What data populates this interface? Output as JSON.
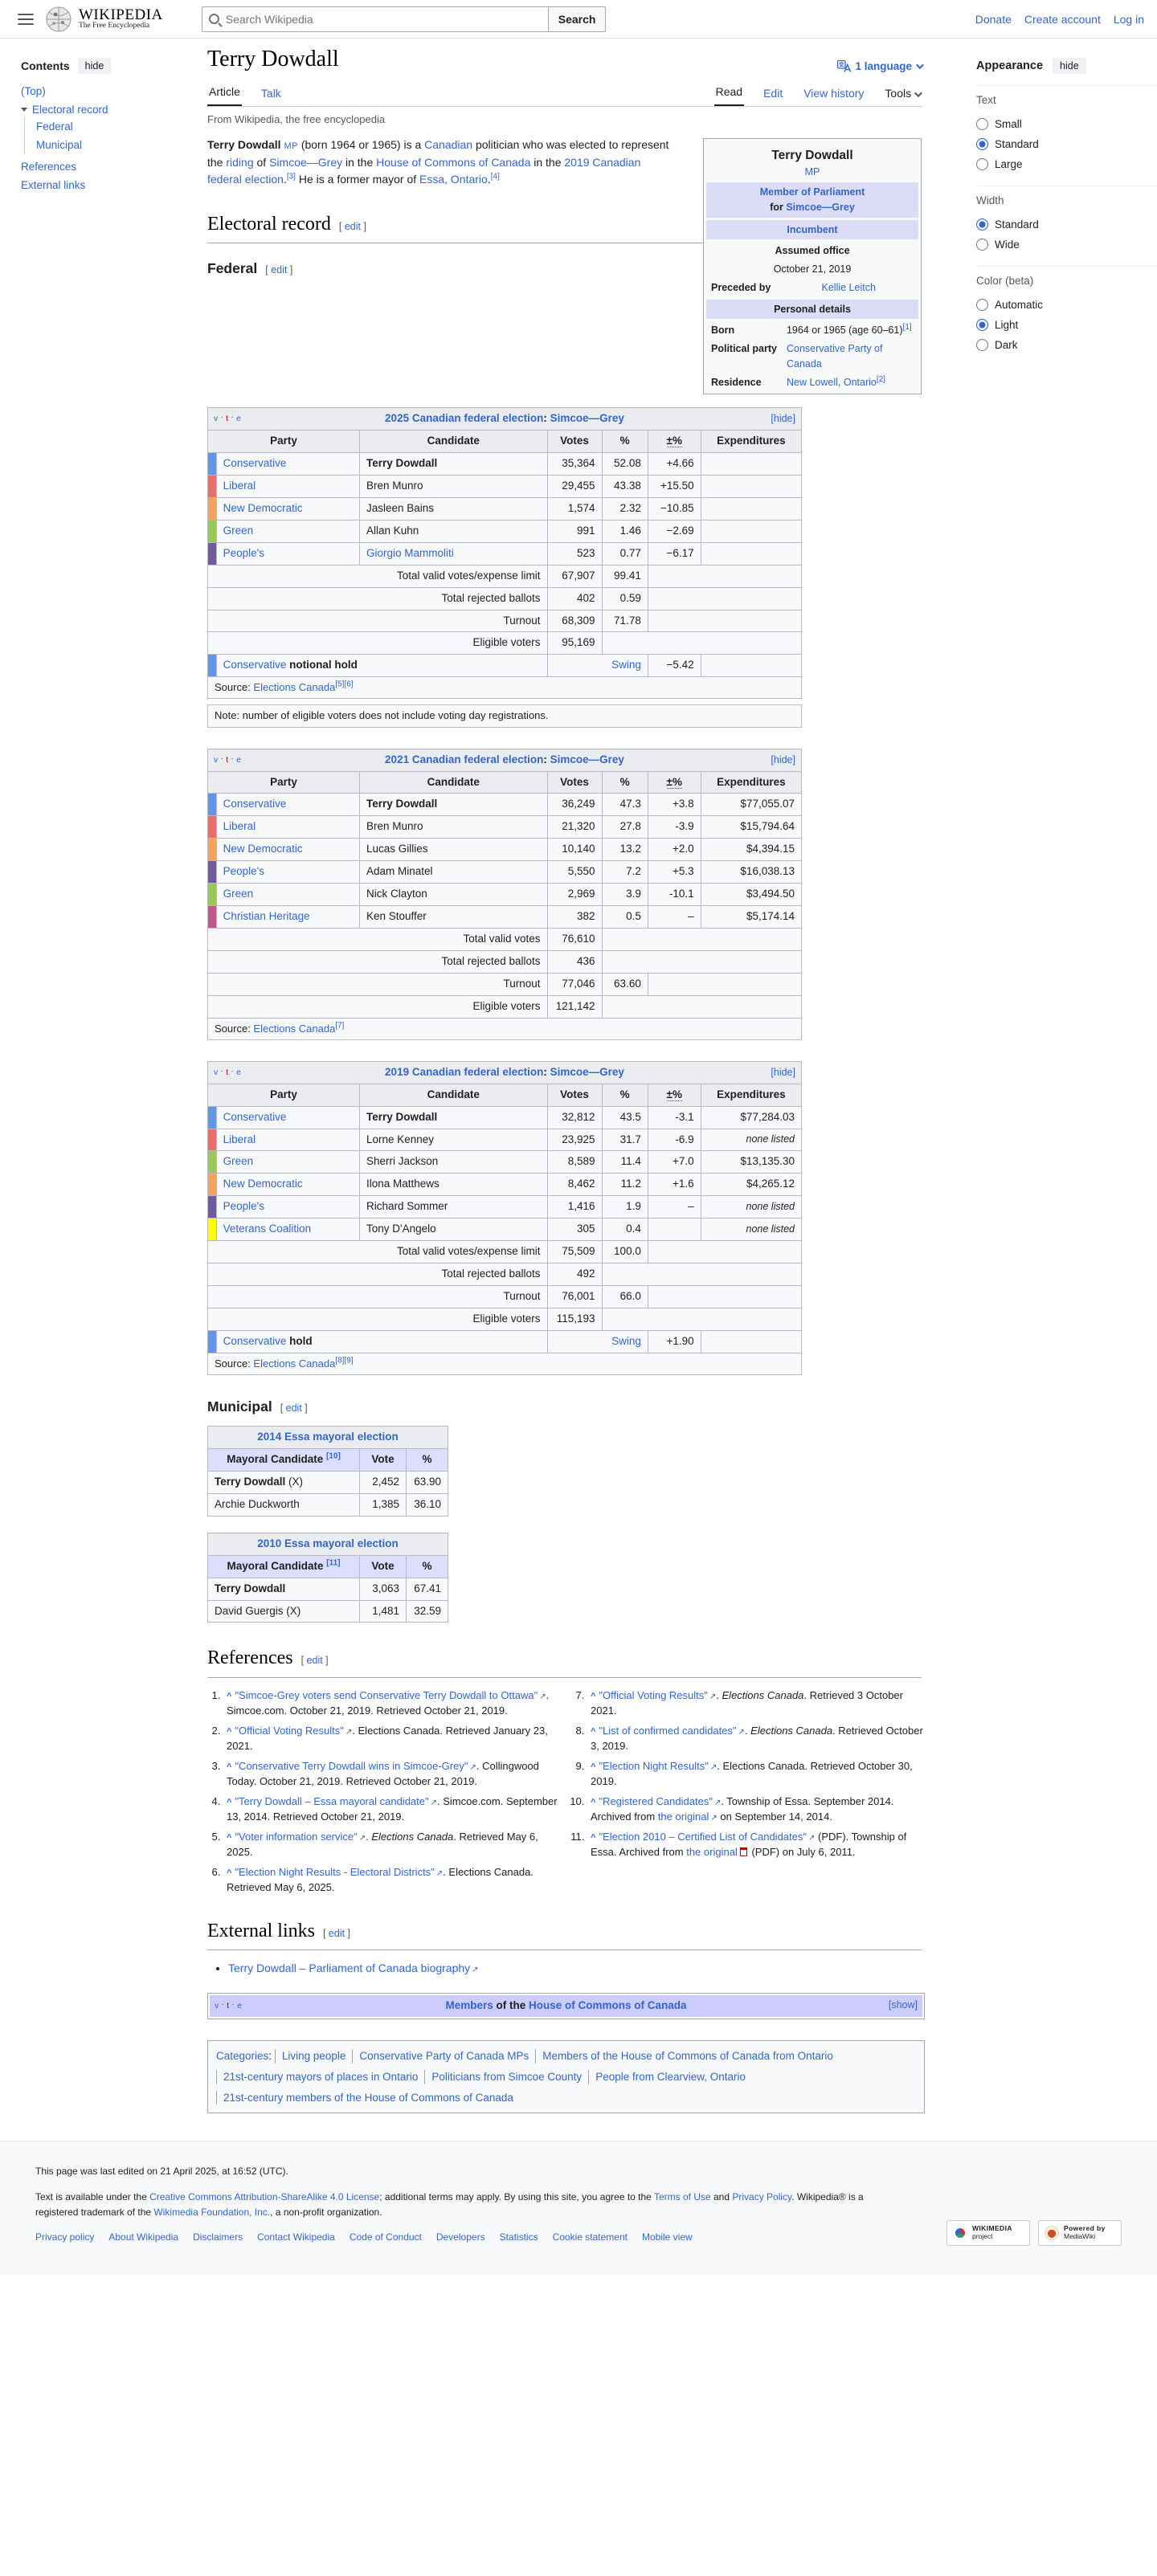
{
  "header": {
    "logo_main": "WIKIPEDIA",
    "logo_sub": "The Free Encyclopedia",
    "search": {
      "placeholder": "Search Wikipedia",
      "button": "Search"
    },
    "links": [
      "Donate",
      "Create account",
      "Log in"
    ]
  },
  "toc": {
    "title": "Contents",
    "hide": "hide",
    "items": [
      {
        "label": "(Top)"
      },
      {
        "label": "Electoral record"
      },
      {
        "label": "Federal"
      },
      {
        "label": "Municipal"
      },
      {
        "label": "References"
      },
      {
        "label": "External links"
      }
    ]
  },
  "title_row": {
    "title": "Terry Dowdall",
    "language": "1 language"
  },
  "tabs": {
    "left": [
      "Article",
      "Talk"
    ],
    "right": [
      "Read",
      "Edit",
      "View history",
      "Tools"
    ]
  },
  "tagline": "From Wikipedia, the free encyclopedia",
  "intro_segments": [
    {
      "t": "Terry Dowdall",
      "b": true
    },
    {
      "t": " "
    },
    {
      "t": "MP",
      "link": true,
      "small": true
    },
    {
      "t": " (born 1964 or 1965) is a "
    },
    {
      "t": "Canadian",
      "link": true
    },
    {
      "t": " politician who was elected to represent the "
    },
    {
      "t": "riding",
      "link": true
    },
    {
      "t": " of "
    },
    {
      "t": "Simcoe—Grey",
      "link": true
    },
    {
      "t": " in the "
    },
    {
      "t": "House of Commons of Canada",
      "link": true
    },
    {
      "t": " in the "
    },
    {
      "t": "2019 Canadian federal election",
      "link": true
    },
    {
      "t": "."
    },
    {
      "t": "[3]",
      "sup": true
    },
    {
      "t": " He is a former mayor of "
    },
    {
      "t": "Essa, Ontario",
      "link": true
    },
    {
      "t": "."
    },
    {
      "t": "[4]",
      "sup": true
    }
  ],
  "infobox": {
    "title": "Terry Dowdall",
    "subtitle": "MP",
    "office_link": "Member of Parliament",
    "office_for": "for",
    "office_riding": "Simcoe—Grey",
    "incumbent": "Incumbent",
    "assumed_office_label": "Assumed office",
    "assumed_office_value": "October 21, 2019",
    "preceded_label": "Preceded by",
    "preceded_value": "Kellie Leitch",
    "personal_details": "Personal details",
    "born_label": "Born",
    "born_value": "1964 or 1965 (age 60–61)",
    "born_ref": "[1]",
    "party_label": "Political party",
    "party_value": "Conservative Party of Canada",
    "residence_label": "Residence",
    "residence_value": "New Lowell, Ontario",
    "residence_ref": "[2]"
  },
  "sections": {
    "electoral_record": {
      "title": "Electoral record",
      "edit": "edit"
    },
    "federal": {
      "title": "Federal",
      "edit": "edit"
    },
    "municipal": {
      "title": "Municipal",
      "edit": "edit"
    },
    "references": {
      "title": "References",
      "edit": "edit"
    },
    "external_links": {
      "title": "External links",
      "edit": "edit"
    }
  },
  "vte": {
    "v": "v",
    "t": "t",
    "e": "e"
  },
  "toggles": {
    "hide": "[hide]",
    "show": "[show]"
  },
  "table_columns": [
    "Party",
    "Candidate",
    "Votes",
    "%",
    "±%",
    "Expenditures"
  ],
  "elections": [
    {
      "caption_parts": [
        {
          "t": "2025 Canadian federal election",
          "link": true
        },
        {
          "t": ": "
        },
        {
          "t": "Simcoe—Grey",
          "link": true
        }
      ],
      "rows": [
        {
          "color": "#6495ed",
          "party": "Conservative",
          "candidate": "Terry Dowdall",
          "cand_bold": true,
          "votes": "35,364",
          "pct": "52.08",
          "change": "+4.66",
          "exp": ""
        },
        {
          "color": "#ea6d6a",
          "party": "Liberal",
          "candidate": "Bren Munro",
          "votes": "29,455",
          "pct": "43.38",
          "change": "+15.50",
          "exp": ""
        },
        {
          "color": "#f4a460",
          "party": "New Democratic",
          "candidate": "Jasleen Bains",
          "votes": "1,574",
          "pct": "2.32",
          "change": "−10.85",
          "exp": ""
        },
        {
          "color": "#99c955",
          "party": "Green",
          "candidate": "Allan Kuhn",
          "votes": "991",
          "pct": "1.46",
          "change": "−2.69",
          "exp": ""
        },
        {
          "color": "#6e5c9e",
          "party": "People's",
          "candidate": "Giorgio Mammoliti",
          "cand_link": true,
          "votes": "523",
          "pct": "0.77",
          "change": "−6.17",
          "exp": ""
        }
      ],
      "totals": [
        {
          "label": "Total valid votes/expense limit",
          "votes": "67,907",
          "pct": "99.41"
        },
        {
          "label": "Total rejected ballots",
          "votes": "402",
          "pct": "0.59"
        },
        {
          "label": "Turnout",
          "votes": "68,309",
          "pct": "71.78"
        },
        {
          "label": "Eligible voters",
          "votes": "95,169",
          "pct": null
        }
      ],
      "result": {
        "color": "#6495ed",
        "party": "Conservative",
        "status": " notional hold",
        "swing_label": "Swing",
        "swing": "−5.42"
      },
      "source_parts": [
        {
          "t": "Source: "
        },
        {
          "t": "Elections Canada",
          "link": true
        },
        {
          "t": "[5][6]",
          "sup": true
        }
      ],
      "note": "Note: number of eligible voters does not include voting day registrations."
    },
    {
      "caption_parts": [
        {
          "t": "2021 Canadian federal election",
          "link": true
        },
        {
          "t": ": "
        },
        {
          "t": "Simcoe—Grey",
          "link": true
        }
      ],
      "rows": [
        {
          "color": "#6495ed",
          "party": "Conservative",
          "candidate": "Terry Dowdall",
          "cand_bold": true,
          "votes": "36,249",
          "pct": "47.3",
          "change": "+3.8",
          "exp": "$77,055.07"
        },
        {
          "color": "#ea6d6a",
          "party": "Liberal",
          "candidate": "Bren Munro",
          "votes": "21,320",
          "pct": "27.8",
          "change": "-3.9",
          "exp": "$15,794.64"
        },
        {
          "color": "#f4a460",
          "party": "New Democratic",
          "candidate": "Lucas Gillies",
          "votes": "10,140",
          "pct": "13.2",
          "change": "+2.0",
          "exp": "$4,394.15"
        },
        {
          "color": "#6e5c9e",
          "party": "People's",
          "candidate": "Adam Minatel",
          "votes": "5,550",
          "pct": "7.2",
          "change": "+5.3",
          "exp": "$16,038.13"
        },
        {
          "color": "#99c955",
          "party": "Green",
          "candidate": "Nick Clayton",
          "votes": "2,969",
          "pct": "3.9",
          "change": "-10.1",
          "exp": "$3,494.50"
        },
        {
          "color": "#c1588c",
          "party": "Christian Heritage",
          "candidate": "Ken Stouffer",
          "votes": "382",
          "pct": "0.5",
          "change": "–",
          "exp": "$5,174.14"
        }
      ],
      "totals": [
        {
          "label": "Total valid votes",
          "votes": "76,610",
          "pct": null
        },
        {
          "label": "Total rejected ballots",
          "votes": "436",
          "pct": null
        },
        {
          "label": "Turnout",
          "votes": "77,046",
          "pct": "63.60"
        },
        {
          "label": "Eligible voters",
          "votes": "121,142",
          "pct": null
        }
      ],
      "result": null,
      "source_parts": [
        {
          "t": "Source: "
        },
        {
          "t": "Elections Canada",
          "link": true
        },
        {
          "t": "[7]",
          "sup": true
        }
      ],
      "note": null
    },
    {
      "caption_parts": [
        {
          "t": "2019 Canadian federal election",
          "link": true
        },
        {
          "t": ": "
        },
        {
          "t": "Simcoe—Grey",
          "link": true
        }
      ],
      "rows": [
        {
          "color": "#6495ed",
          "party": "Conservative",
          "candidate": "Terry Dowdall",
          "cand_bold": true,
          "votes": "32,812",
          "pct": "43.5",
          "change": "-3.1",
          "exp": "$77,284.03"
        },
        {
          "color": "#ea6d6a",
          "party": "Liberal",
          "candidate": "Lorne Kenney",
          "votes": "23,925",
          "pct": "31.7",
          "change": "-6.9",
          "exp": "none listed"
        },
        {
          "color": "#99c955",
          "party": "Green",
          "candidate": "Sherri Jackson",
          "votes": "8,589",
          "pct": "11.4",
          "change": "+7.0",
          "exp": "$13,135.30"
        },
        {
          "color": "#f4a460",
          "party": "New Democratic",
          "candidate": "Ilona Matthews",
          "votes": "8,462",
          "pct": "11.2",
          "change": "+1.6",
          "exp": "$4,265.12"
        },
        {
          "color": "#6e5c9e",
          "party": "People's",
          "candidate": "Richard Sommer",
          "votes": "1,416",
          "pct": "1.9",
          "change": "–",
          "exp": "none listed"
        },
        {
          "color": "#ffff00",
          "party": "Veterans Coalition",
          "candidate": "Tony D'Angelo",
          "votes": "305",
          "pct": "0.4",
          "change": "",
          "exp": "none listed"
        }
      ],
      "totals": [
        {
          "label": "Total valid votes/expense limit",
          "votes": "75,509",
          "pct": "100.0"
        },
        {
          "label": "Total rejected ballots",
          "votes": "492",
          "pct": null
        },
        {
          "label": "Turnout",
          "votes": "76,001",
          "pct": "66.0"
        },
        {
          "label": "Eligible voters",
          "votes": "115,193",
          "pct": null
        }
      ],
      "result": {
        "color": "#6495ed",
        "party": "Conservative",
        "status": " hold",
        "swing_label": "Swing",
        "swing": "+1.90"
      },
      "source_parts": [
        {
          "t": "Source: "
        },
        {
          "t": "Elections Canada",
          "link": true
        },
        {
          "t": "[8][9]",
          "sup": true
        }
      ],
      "note": null
    }
  ],
  "mayoral_tables": [
    {
      "caption": "2014 Essa mayoral election",
      "col_candidate": "Mayoral Candidate",
      "col_ref": "[10]",
      "col_vote": "Vote",
      "col_pct": "%",
      "rows": [
        {
          "name": "Terry Dowdall",
          "bold": true,
          "suffix": " (X)",
          "vote": "2,452",
          "pct": "63.90"
        },
        {
          "name": "Archie Duckworth",
          "bold": false,
          "suffix": "",
          "vote": "1,385",
          "pct": "36.10"
        }
      ]
    },
    {
      "caption": "2010 Essa mayoral election",
      "col_candidate": "Mayoral Candidate",
      "col_ref": "[11]",
      "col_vote": "Vote",
      "col_pct": "%",
      "rows": [
        {
          "name": "Terry Dowdall",
          "bold": true,
          "suffix": "",
          "vote": "3,063",
          "pct": "67.41"
        },
        {
          "name": "David Guergis",
          "bold": false,
          "suffix": " (X)",
          "vote": "1,481",
          "pct": "32.59"
        }
      ]
    }
  ],
  "references": [
    [
      {
        "t": "\"Simcoe-Grey voters send Conservative Terry Dowdall to Ottawa\"",
        "link": true,
        "ext": true
      },
      {
        "t": ". Simcoe.com. October 21, 2019. Retrieved October 21, 2019."
      }
    ],
    [
      {
        "t": "\"Official Voting Results\"",
        "link": true,
        "ext": true
      },
      {
        "t": ". Elections Canada. Retrieved January 23, 2021."
      }
    ],
    [
      {
        "t": "\"Conservative Terry Dowdall wins in Simcoe-Grey\"",
        "link": true,
        "ext": true
      },
      {
        "t": ". Collingwood Today. October 21, 2019. Retrieved October 21, 2019."
      }
    ],
    [
      {
        "t": "\"Terry Dowdall – Essa mayoral candidate\"",
        "link": true,
        "ext": true
      },
      {
        "t": ". Simcoe.com. September 13, 2014. Retrieved October 21, 2019."
      }
    ],
    [
      {
        "t": "\"Voter information service\"",
        "link": true,
        "ext": true
      },
      {
        "t": ". "
      },
      {
        "t": "Elections Canada",
        "i": true
      },
      {
        "t": ". Retrieved May 6, 2025."
      }
    ],
    [
      {
        "t": "\"Election Night Results - Electoral Districts\"",
        "link": true,
        "ext": true
      },
      {
        "t": ". Elections Canada. Retrieved May 6, 2025."
      }
    ],
    [
      {
        "t": "\"Official Voting Results\"",
        "link": true,
        "ext": true
      },
      {
        "t": ". "
      },
      {
        "t": "Elections Canada",
        "i": true
      },
      {
        "t": ". Retrieved 3 October 2021."
      }
    ],
    [
      {
        "t": "\"List of confirmed candidates\"",
        "link": true,
        "ext": true
      },
      {
        "t": ". "
      },
      {
        "t": "Elections Canada",
        "i": true
      },
      {
        "t": ". Retrieved October 3, 2019."
      }
    ],
    [
      {
        "t": "\"Election Night Results\"",
        "link": true,
        "ext": true
      },
      {
        "t": ". Elections Canada. Retrieved October 30, 2019."
      }
    ],
    [
      {
        "t": "\"Registered Candidates\"",
        "link": true,
        "ext": true
      },
      {
        "t": ". Township of Essa. September 2014. Archived from "
      },
      {
        "t": "the original",
        "link": true,
        "ext": true
      },
      {
        "t": " on September 14, 2014."
      }
    ],
    [
      {
        "t": "\"Election 2010 – Certified List of Candidates\"",
        "link": true,
        "ext": true
      },
      {
        "t": " (PDF). Township of Essa. Archived from "
      },
      {
        "t": "the original",
        "link": true,
        "pdf": true
      },
      {
        "t": " (PDF) on July 6, 2011."
      }
    ]
  ],
  "external_links_items": [
    {
      "t": "Terry Dowdall – Parliament of Canada biography",
      "link": true,
      "ext": true
    }
  ],
  "navbox": {
    "title_parts": [
      {
        "t": "Members",
        "link": true,
        "b": true
      },
      {
        "t": " of the ",
        "b": true
      },
      {
        "t": "House of Commons of Canada",
        "link": true,
        "b": true
      }
    ]
  },
  "categories": {
    "label": "Categories",
    "colon": ":",
    "items": [
      "Living people",
      "Conservative Party of Canada MPs",
      "Members of the House of Commons of Canada from Ontario",
      "21st-century mayors of places in Ontario",
      "Politicians from Simcoe County",
      "People from Clearview, Ontario",
      "21st-century members of the House of Commons of Canada"
    ]
  },
  "appearance": {
    "title": "Appearance",
    "hide": "hide",
    "groups": [
      {
        "label": "Text",
        "options": [
          {
            "label": "Small",
            "checked": false
          },
          {
            "label": "Standard",
            "checked": true
          },
          {
            "label": "Large",
            "checked": false
          }
        ]
      },
      {
        "label": "Width",
        "options": [
          {
            "label": "Standard",
            "checked": true
          },
          {
            "label": "Wide",
            "checked": false
          }
        ]
      },
      {
        "label": "Color (beta)",
        "options": [
          {
            "label": "Automatic",
            "checked": false
          },
          {
            "label": "Light",
            "checked": true
          },
          {
            "label": "Dark",
            "checked": false
          }
        ]
      }
    ]
  },
  "footer": {
    "last_edited": "This page was last edited on 21 April 2025, at 16:52 (UTC).",
    "license_segments": [
      {
        "t": "Text is available under the "
      },
      {
        "t": "Creative Commons Attribution-ShareAlike 4.0 License",
        "link": true
      },
      {
        "t": "; additional terms may apply. By using this site, you agree to the "
      },
      {
        "t": "Terms of Use",
        "link": true
      },
      {
        "t": " and "
      },
      {
        "t": "Privacy Policy",
        "link": true
      },
      {
        "t": ". Wikipedia® is a registered trademark of the "
      },
      {
        "t": "Wikimedia Foundation, Inc.",
        "link": true
      },
      {
        "t": ", a non-profit organization."
      }
    ],
    "links": [
      "Privacy policy",
      "About Wikipedia",
      "Disclaimers",
      "Contact Wikipedia",
      "Code of Conduct",
      "Developers",
      "Statistics",
      "Cookie statement",
      "Mobile view"
    ],
    "badges": [
      {
        "line1": "WIKIMEDIA",
        "line2": "project",
        "icon": "wikimedia"
      },
      {
        "line1": "Powered by",
        "line2": "MediaWiki",
        "icon": "mediawiki"
      }
    ]
  }
}
